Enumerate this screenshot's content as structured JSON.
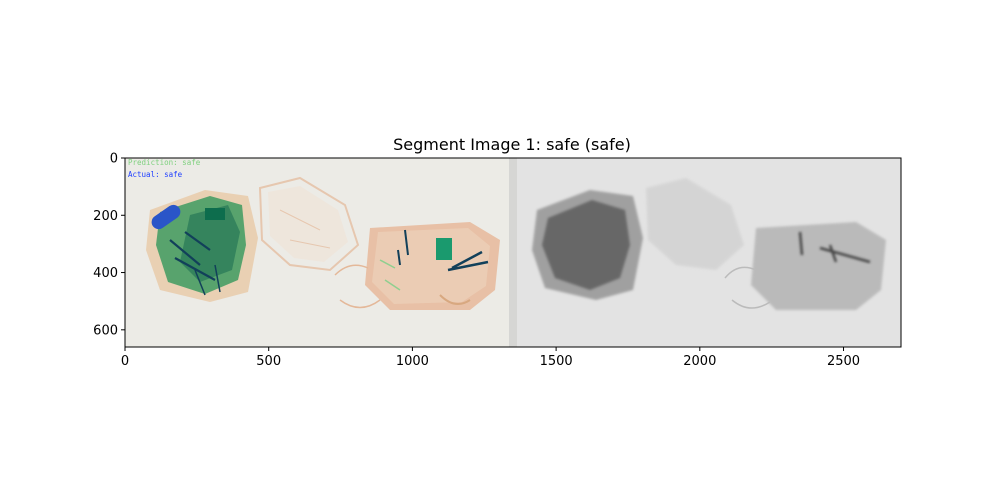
{
  "figure": {
    "title": "Segment Image 1: safe (safe)",
    "overlay": {
      "prediction_text": "Prediction: safe",
      "actual_text": "Actual: safe"
    },
    "x_axis": {
      "range": [
        0,
        2700
      ],
      "ticks": [
        {
          "value": 0,
          "label": "0"
        },
        {
          "value": 500,
          "label": "500"
        },
        {
          "value": 1000,
          "label": "1000"
        },
        {
          "value": 1500,
          "label": "1500"
        },
        {
          "value": 2000,
          "label": "2000"
        },
        {
          "value": 2500,
          "label": "2500"
        }
      ]
    },
    "y_axis": {
      "range": [
        0,
        660
      ],
      "inverted": true,
      "ticks": [
        {
          "value": 0,
          "label": "0"
        },
        {
          "value": 200,
          "label": "200"
        },
        {
          "value": 400,
          "label": "400"
        },
        {
          "value": 600,
          "label": "600"
        }
      ]
    },
    "colors": {
      "xray_background": "#ecebe6",
      "gray_background": "#e2e2e2",
      "prediction": "#7fd17f",
      "actual": "#1f3fff"
    }
  }
}
